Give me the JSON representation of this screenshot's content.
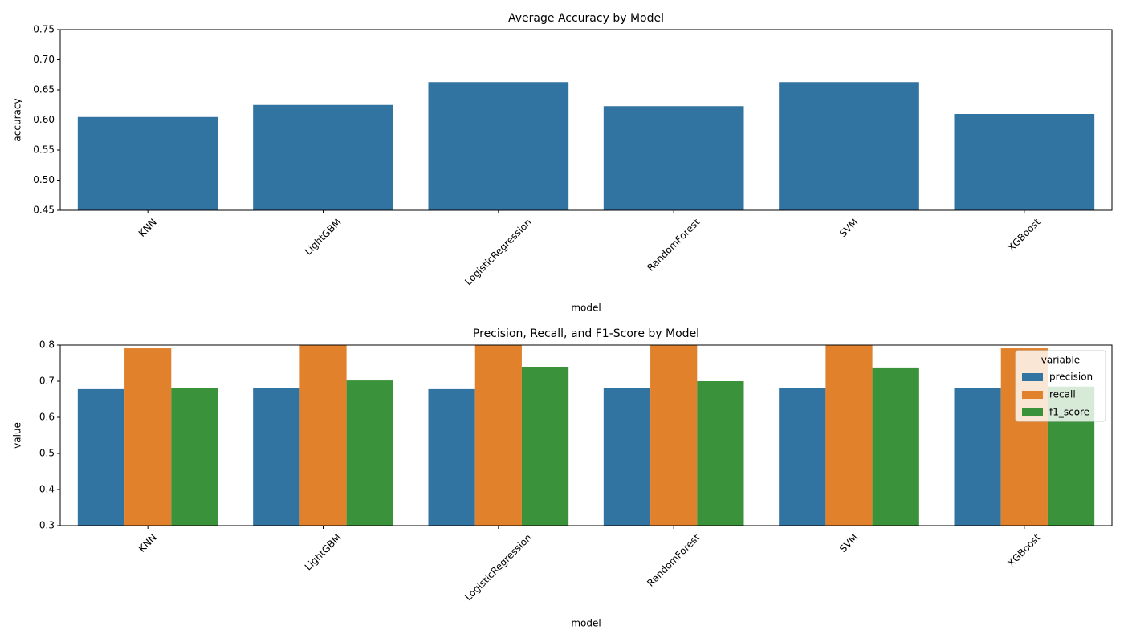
{
  "chart_data": [
    {
      "type": "bar",
      "title": "Average Accuracy by Model",
      "x_label": "model",
      "y_label": "accuracy",
      "categories": [
        "KNN",
        "LightGBM",
        "LogisticRegression",
        "RandomForest",
        "SVM",
        "XGBoost"
      ],
      "values": [
        0.605,
        0.625,
        0.663,
        0.623,
        0.663,
        0.61
      ],
      "color": "#3274a1",
      "ylim": [
        0.45,
        0.75
      ],
      "yticks": [
        0.45,
        {
          "value": 0.5,
          "label": "0.50"
        },
        0.55,
        {
          "value": 0.6,
          "label": "0.60"
        },
        0.65,
        {
          "value": 0.7,
          "label": "0.70"
        },
        0.75
      ]
    },
    {
      "type": "grouped_bar",
      "title": "Precision, Recall, and F1-Score by Model",
      "x_label": "model",
      "y_label": "value",
      "categories": [
        "KNN",
        "LightGBM",
        "LogisticRegression",
        "RandomForest",
        "SVM",
        "XGBoost"
      ],
      "series": [
        {
          "name": "precision",
          "color": "#3274a1",
          "values": [
            0.678,
            0.682,
            0.678,
            0.682,
            0.682,
            0.682
          ]
        },
        {
          "name": "recall",
          "color": "#e1812c",
          "values": [
            0.791,
            0.83,
            0.83,
            0.83,
            0.83,
            0.791
          ]
        },
        {
          "name": "f1_score",
          "color": "#3a923a",
          "values": [
            0.682,
            0.702,
            0.74,
            0.7,
            0.738,
            0.685
          ]
        }
      ],
      "legend_title": "variable",
      "legend": "upper right",
      "ylim": [
        0.3,
        0.8
      ],
      "yticks": [
        0.3,
        0.4,
        0.5,
        0.6,
        0.7,
        0.8
      ]
    }
  ]
}
